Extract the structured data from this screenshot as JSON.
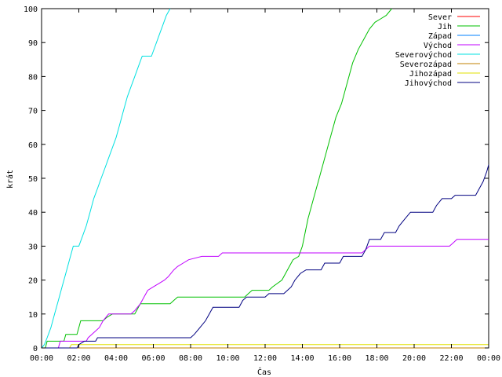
{
  "chart_data": {
    "type": "line",
    "title": "",
    "xlabel": "Čas",
    "ylabel": "krát",
    "xlim": [
      0,
      24
    ],
    "ylim": [
      0,
      100
    ],
    "xticks": [
      {
        "v": 0,
        "label": "00:00"
      },
      {
        "v": 2,
        "label": "02:00"
      },
      {
        "v": 4,
        "label": "04:00"
      },
      {
        "v": 6,
        "label": "06:00"
      },
      {
        "v": 8,
        "label": "08:00"
      },
      {
        "v": 10,
        "label": "10:00"
      },
      {
        "v": 12,
        "label": "12:00"
      },
      {
        "v": 14,
        "label": "14:00"
      },
      {
        "v": 16,
        "label": "16:00"
      },
      {
        "v": 18,
        "label": "18:00"
      },
      {
        "v": 20,
        "label": "20:00"
      },
      {
        "v": 22,
        "label": "22:00"
      },
      {
        "v": 24,
        "label": "00:00"
      }
    ],
    "yticks": [
      {
        "v": 0,
        "label": "0"
      },
      {
        "v": 10,
        "label": "10"
      },
      {
        "v": 20,
        "label": "20"
      },
      {
        "v": 30,
        "label": "30"
      },
      {
        "v": 40,
        "label": "40"
      },
      {
        "v": 50,
        "label": "50"
      },
      {
        "v": 60,
        "label": "60"
      },
      {
        "v": 70,
        "label": "70"
      },
      {
        "v": 80,
        "label": "80"
      },
      {
        "v": 90,
        "label": "90"
      },
      {
        "v": 100,
        "label": "100"
      }
    ],
    "legend_position": "top-right",
    "grid": false,
    "series": [
      {
        "name": "Sever",
        "color": "#ff0000",
        "points": [
          [
            0,
            0
          ],
          [
            24,
            0
          ]
        ]
      },
      {
        "name": "Jih",
        "color": "#00c000",
        "points": [
          [
            0,
            0
          ],
          [
            0.2,
            0
          ],
          [
            0.3,
            2
          ],
          [
            1.2,
            2
          ],
          [
            1.3,
            4
          ],
          [
            1.9,
            4
          ],
          [
            2.0,
            6
          ],
          [
            2.1,
            8
          ],
          [
            3.3,
            8
          ],
          [
            3.5,
            9
          ],
          [
            3.8,
            10
          ],
          [
            5.0,
            10
          ],
          [
            5.1,
            11
          ],
          [
            5.3,
            13
          ],
          [
            6.9,
            13
          ],
          [
            7.1,
            14
          ],
          [
            7.3,
            15
          ],
          [
            10.9,
            15
          ],
          [
            11.1,
            16
          ],
          [
            11.3,
            17
          ],
          [
            12.2,
            17
          ],
          [
            12.4,
            18
          ],
          [
            12.9,
            20
          ],
          [
            13.3,
            24
          ],
          [
            13.5,
            26
          ],
          [
            13.8,
            27
          ],
          [
            14.0,
            30
          ],
          [
            14.3,
            38
          ],
          [
            14.6,
            44
          ],
          [
            14.9,
            50
          ],
          [
            15.2,
            56
          ],
          [
            15.5,
            62
          ],
          [
            15.8,
            68
          ],
          [
            16.1,
            72
          ],
          [
            16.4,
            78
          ],
          [
            16.7,
            84
          ],
          [
            17.0,
            88
          ],
          [
            17.3,
            91
          ],
          [
            17.6,
            94
          ],
          [
            17.9,
            96
          ],
          [
            18.2,
            97
          ],
          [
            18.5,
            98
          ],
          [
            18.8,
            100
          ]
        ]
      },
      {
        "name": "Západ",
        "color": "#0080ff",
        "points": [
          [
            0,
            0
          ],
          [
            24,
            0
          ]
        ]
      },
      {
        "name": "Východ",
        "color": "#c000ff",
        "points": [
          [
            0,
            0
          ],
          [
            0.9,
            0
          ],
          [
            0.95,
            1
          ],
          [
            1.0,
            2
          ],
          [
            2.4,
            2
          ],
          [
            2.5,
            3
          ],
          [
            2.7,
            4
          ],
          [
            2.9,
            5
          ],
          [
            3.1,
            6
          ],
          [
            3.3,
            8
          ],
          [
            3.6,
            10
          ],
          [
            4.8,
            10
          ],
          [
            5.0,
            11
          ],
          [
            5.3,
            13
          ],
          [
            5.5,
            15
          ],
          [
            5.7,
            17
          ],
          [
            6.0,
            18
          ],
          [
            6.3,
            19
          ],
          [
            6.6,
            20
          ],
          [
            6.8,
            21
          ],
          [
            7.1,
            23
          ],
          [
            7.3,
            24
          ],
          [
            7.6,
            25
          ],
          [
            7.9,
            26
          ],
          [
            8.6,
            27
          ],
          [
            9.5,
            27
          ],
          [
            9.7,
            28
          ],
          [
            17.2,
            28
          ],
          [
            17.4,
            29
          ],
          [
            17.6,
            30
          ],
          [
            21.9,
            30
          ],
          [
            22.1,
            31
          ],
          [
            22.3,
            32
          ],
          [
            24,
            32
          ]
        ]
      },
      {
        "name": "Severovýchod",
        "color": "#00e0e0",
        "points": [
          [
            0,
            0
          ],
          [
            0.15,
            1
          ],
          [
            0.3,
            3
          ],
          [
            0.5,
            6
          ],
          [
            0.7,
            10
          ],
          [
            0.9,
            14
          ],
          [
            1.1,
            18
          ],
          [
            1.3,
            22
          ],
          [
            1.5,
            26
          ],
          [
            1.7,
            30
          ],
          [
            2.0,
            30
          ],
          [
            2.2,
            33
          ],
          [
            2.4,
            36
          ],
          [
            2.6,
            40
          ],
          [
            2.8,
            44
          ],
          [
            3.0,
            47
          ],
          [
            3.2,
            50
          ],
          [
            3.4,
            53
          ],
          [
            3.6,
            56
          ],
          [
            3.8,
            59
          ],
          [
            4.0,
            62
          ],
          [
            4.2,
            66
          ],
          [
            4.4,
            70
          ],
          [
            4.6,
            74
          ],
          [
            4.8,
            77
          ],
          [
            5.0,
            80
          ],
          [
            5.2,
            83
          ],
          [
            5.4,
            86
          ],
          [
            5.9,
            86
          ],
          [
            6.1,
            89
          ],
          [
            6.3,
            92
          ],
          [
            6.5,
            95
          ],
          [
            6.7,
            98
          ],
          [
            6.9,
            100
          ]
        ]
      },
      {
        "name": "Severozápad",
        "color": "#c08000",
        "points": [
          [
            0,
            0
          ],
          [
            24,
            0
          ]
        ]
      },
      {
        "name": "Jihozápad",
        "color": "#e0e000",
        "points": [
          [
            0,
            0
          ],
          [
            1.5,
            0
          ],
          [
            1.6,
            1
          ],
          [
            24,
            1
          ]
        ]
      },
      {
        "name": "Jihovýchod",
        "color": "#000080",
        "points": [
          [
            0,
            0
          ],
          [
            1.9,
            0
          ],
          [
            2.0,
            1
          ],
          [
            2.3,
            2
          ],
          [
            2.9,
            2
          ],
          [
            3.0,
            3
          ],
          [
            8.0,
            3
          ],
          [
            8.2,
            4
          ],
          [
            8.5,
            6
          ],
          [
            8.8,
            8
          ],
          [
            9.0,
            10
          ],
          [
            9.2,
            12
          ],
          [
            10.6,
            12
          ],
          [
            10.8,
            14
          ],
          [
            11.0,
            15
          ],
          [
            12.0,
            15
          ],
          [
            12.2,
            16
          ],
          [
            13.0,
            16
          ],
          [
            13.2,
            17
          ],
          [
            13.4,
            18
          ],
          [
            13.6,
            20
          ],
          [
            13.9,
            22
          ],
          [
            14.2,
            23
          ],
          [
            15.0,
            23
          ],
          [
            15.2,
            25
          ],
          [
            16.0,
            25
          ],
          [
            16.2,
            27
          ],
          [
            17.2,
            27
          ],
          [
            17.4,
            29
          ],
          [
            17.6,
            32
          ],
          [
            18.2,
            32
          ],
          [
            18.4,
            34
          ],
          [
            19.0,
            34
          ],
          [
            19.2,
            36
          ],
          [
            19.5,
            38
          ],
          [
            19.8,
            40
          ],
          [
            21.0,
            40
          ],
          [
            21.2,
            42
          ],
          [
            21.5,
            44
          ],
          [
            22.0,
            44
          ],
          [
            22.2,
            45
          ],
          [
            23.3,
            45
          ],
          [
            23.5,
            47
          ],
          [
            23.7,
            49
          ],
          [
            23.9,
            52
          ],
          [
            24,
            54
          ]
        ]
      }
    ]
  }
}
